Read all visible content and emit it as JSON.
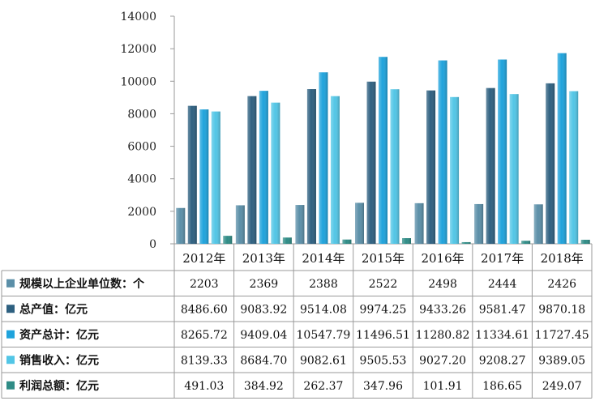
{
  "chart_data": {
    "type": "bar",
    "categories": [
      "2012年",
      "2013年",
      "2014年",
      "2015年",
      "2016年",
      "2017年",
      "2018年"
    ],
    "ylim": [
      0,
      14000
    ],
    "yticks": [
      0,
      2000,
      4000,
      6000,
      8000,
      10000,
      12000,
      14000
    ],
    "grid": false,
    "legend": "data-table-left",
    "series": [
      {
        "name": "规模以上企业单位数：个",
        "color": "#5b8fa8",
        "values": [
          2203,
          2369,
          2388,
          2522,
          2498,
          2444,
          2426
        ],
        "labels": [
          "2203",
          "2369",
          "2388",
          "2522",
          "2498",
          "2444",
          "2426"
        ]
      },
      {
        "name": "总产值：亿元",
        "color": "#2e6080",
        "values": [
          8486.6,
          9083.92,
          9514.08,
          9974.25,
          9433.26,
          9581.47,
          9870.18
        ],
        "labels": [
          "8486.60",
          "9083.92",
          "9514.08",
          "9974.25",
          "9433.26",
          "9581.47",
          "9870.18"
        ]
      },
      {
        "name": "资产总计：亿元",
        "color": "#1fa3dc",
        "values": [
          8265.72,
          9409.04,
          10547.79,
          11496.51,
          11280.82,
          11334.61,
          11727.45
        ],
        "labels": [
          "8265.72",
          "9409.04",
          "10547.79",
          "11496.51",
          "11280.82",
          "11334.61",
          "11727.45"
        ]
      },
      {
        "name": "销售收入：亿元",
        "color": "#52c6e6",
        "values": [
          8139.33,
          8684.7,
          9082.61,
          9505.53,
          9027.2,
          9208.27,
          9389.05
        ],
        "labels": [
          "8139.33",
          "8684.70",
          "9082.61",
          "9505.53",
          "9027.20",
          "9208.27",
          "9389.05"
        ]
      },
      {
        "name": "利润总额：亿元",
        "color": "#2f8c86",
        "values": [
          491.03,
          384.92,
          262.37,
          347.96,
          101.91,
          186.65,
          249.07
        ],
        "labels": [
          "491.03",
          "384.92",
          "262.37",
          "347.96",
          "101.91",
          "186.65",
          "249.07"
        ]
      }
    ]
  }
}
